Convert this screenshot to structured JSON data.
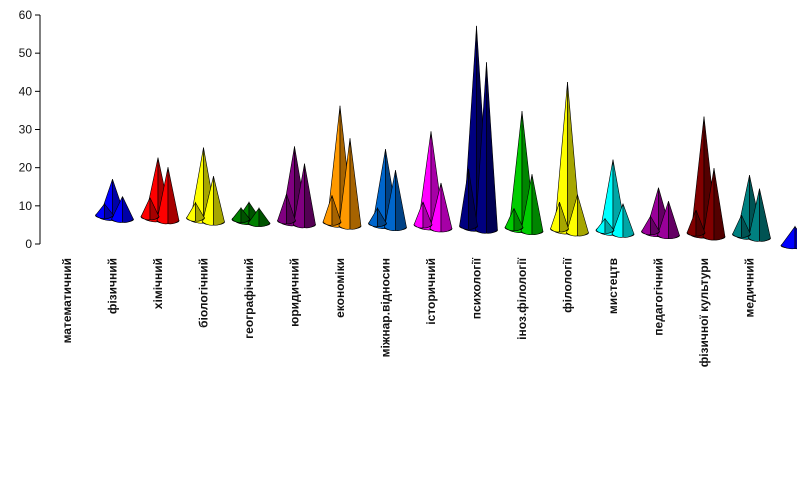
{
  "chart_data": {
    "type": "bar",
    "style": "3d-cone",
    "title": "",
    "xlabel": "",
    "ylabel": "",
    "ylim": [
      0,
      60
    ],
    "y_ticks": [
      "0",
      "10",
      "20",
      "30",
      "40",
      "50",
      "60"
    ],
    "grid": false,
    "legend": "none",
    "categories": [
      "математичний",
      "фізичний",
      "хімічний",
      "біологічний",
      "географічний",
      "юридичний",
      "економіки",
      "міжнар.відносин",
      "історичний",
      "психології",
      "іноз.філології",
      "філології",
      "мистецтв",
      "педагогічний",
      "фізичної культури",
      "медичний"
    ],
    "series": [
      {
        "values": [
          0,
          10,
          16,
          19,
          5,
          20,
          31,
          20,
          25,
          53,
          31,
          39,
          19,
          12,
          31,
          16
        ]
      },
      {
        "values": [
          0,
          6,
          14,
          12,
          4,
          16,
          23,
          15,
          12,
          44,
          15,
          10,
          8,
          9,
          18,
          13
        ]
      },
      {
        "values": [
          0,
          3,
          5,
          4,
          3,
          7,
          7,
          4,
          6,
          15,
          5,
          7,
          3,
          4,
          6,
          5
        ]
      }
    ],
    "colors": [
      "#808080",
      "#0000ff",
      "#ff0000",
      "#ffff00",
      "#008000",
      "#800080",
      "#ff9900",
      "#0066cc",
      "#ff00ff",
      "#000080",
      "#00cc00",
      "#ffff00",
      "#00ffff",
      "#990099",
      "#800000",
      "#008080"
    ],
    "extra_cone": {
      "color": "#0000ff",
      "value": 5
    }
  }
}
